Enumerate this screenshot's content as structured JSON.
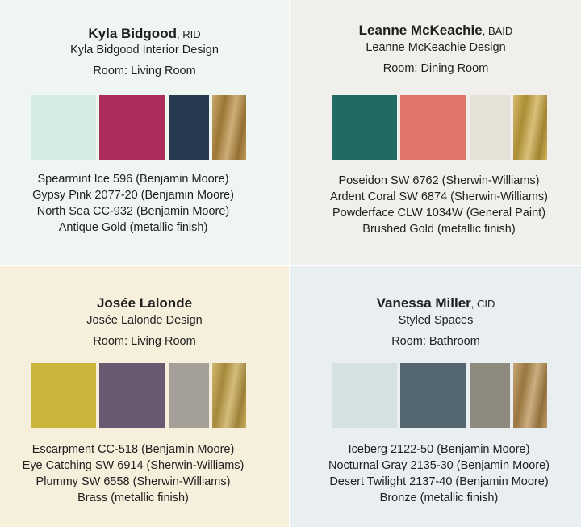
{
  "panels": [
    {
      "name": "Kyla Bidgood",
      "credential": ", RID",
      "firm": "Kyla Bidgood Interior Design",
      "room": "Room: Living Room",
      "swatches": [
        "#d3ebe3",
        "#ac2c5c",
        "#283a52",
        "#b88a3e"
      ],
      "paints": [
        "Spearmint Ice 596 (Benjamin Moore)",
        "Gypsy Pink 2077-20 (Benjamin Moore)",
        "North Sea CC-932 (Benjamin Moore)",
        "Antique Gold (metallic finish)"
      ]
    },
    {
      "name": "Leanne McKeachie",
      "credential": ", BAID",
      "firm": "Leanne McKeachie Design",
      "room": "Room: Dining Room",
      "swatches": [
        "#1f6a63",
        "#e1756a",
        "#e6e1d6",
        "#c9a53e"
      ],
      "paints": [
        "Poseidon SW 6762 (Sherwin-Williams)",
        "Ardent Coral SW 6874 (Sherwin-Williams)",
        "Powderface CLW 1034W (General Paint)",
        "Brushed Gold (metallic finish)"
      ]
    },
    {
      "name": "Josée Lalonde",
      "firm": "Josée Lalonde Design",
      "room": "Room: Living Room",
      "swatches": [
        "#cdb43c",
        "#695a72",
        "#a39e98",
        "#c2a043"
      ],
      "paints": [
        "Escarpment CC-518 (Benjamin Moore)",
        "Eye Catching SW 6914 (Sherwin-Williams)",
        "Plummy SW 6558 (Sherwin-Williams)",
        "Brass (metallic finish)"
      ]
    },
    {
      "name": "Vanessa Miller",
      "credential": ", CID",
      "firm": "Styled Spaces",
      "room": "Room: Bathroom",
      "swatches": [
        "#d5e0e2",
        "#546670",
        "#8e8b7e",
        "#b48a4a"
      ],
      "paints": [
        "Iceberg 2122-50 (Benjamin Moore)",
        "Nocturnal Gray 2135-30 (Benjamin Moore)",
        "Desert Twilight 2137-40 (Benjamin Moore)",
        "Bronze (metallic finish)"
      ]
    }
  ]
}
